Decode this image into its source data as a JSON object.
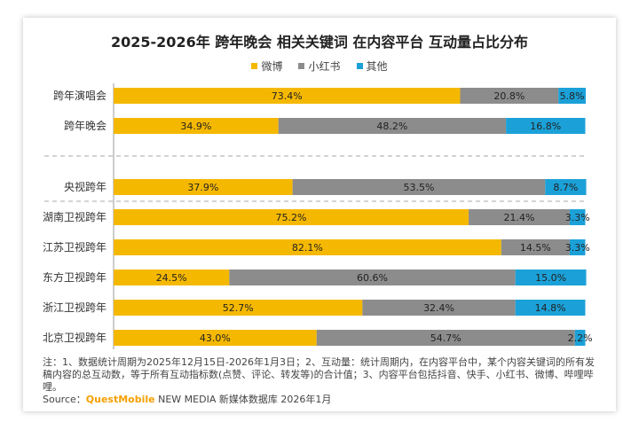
{
  "chart_data": {
    "type": "bar",
    "orientation": "horizontal",
    "stacked": true,
    "title": "2025-2026年 跨年晚会 相关关键词 在内容平台 互动量占比分布",
    "categories": [
      "跨年演唱会",
      "跨年晚会",
      "央视跨年",
      "湖南卫视跨年",
      "江苏卫视跨年",
      "东方卫视跨年",
      "浙江卫视跨年",
      "北京卫视跨年"
    ],
    "series": [
      {
        "name": "微博",
        "color": "#f5b800",
        "values": [
          73.4,
          34.9,
          37.9,
          75.2,
          82.1,
          24.5,
          52.7,
          43.0
        ],
        "labels": [
          "73.4%",
          "34.9%",
          "37.9%",
          "75.2%",
          "82.1%",
          "24.5%",
          "52.7%",
          "43.0%"
        ]
      },
      {
        "name": "小红书",
        "color": "#8c8c8c",
        "values": [
          20.8,
          48.2,
          53.5,
          21.4,
          14.5,
          60.6,
          32.4,
          54.7
        ],
        "labels": [
          "20.8%",
          "48.2%",
          "53.5%",
          "21.4%",
          "14.5%",
          "60.6%",
          "32.4%",
          "54.7%"
        ]
      },
      {
        "name": "其他",
        "color": "#1ba1d8",
        "values": [
          5.8,
          16.8,
          8.7,
          3.3,
          3.3,
          15.0,
          14.8,
          2.2
        ],
        "labels": [
          "5.8%",
          "16.8%",
          "8.7%",
          "3.3%",
          "3.3%",
          "15.0%",
          "14.8%",
          "2.2%"
        ]
      }
    ],
    "xlim": [
      0,
      100
    ],
    "legend_position": "top-center"
  },
  "footnote": "注：1、数据统计周期为2025年12月15日-2026年1月3日；2、互动量：统计周期内，在内容平台中，某个内容关键词的所有发稿内容的总互动数，等于所有互动指标数(点赞、评论、转发等)的合计值；3、内容平台包括抖音、快手、小红书、微博、哔哩哔哩。",
  "source": {
    "prefix": "Source：",
    "brand": "QuestMobile",
    "suffix": " NEW MEDIA 新媒体数据库 2026年1月"
  }
}
